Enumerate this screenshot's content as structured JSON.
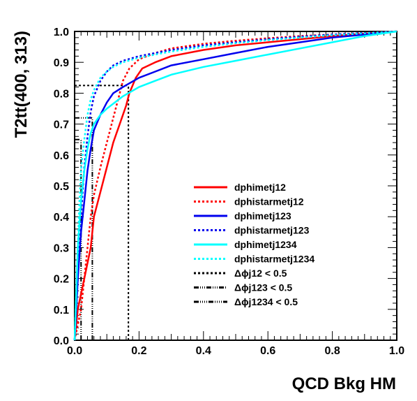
{
  "chart_data": {
    "type": "line",
    "title": "",
    "xlabel": "QCD Bkg HM",
    "ylabel": "T2tt(400, 313)",
    "xlim": [
      0,
      1
    ],
    "ylim": [
      0,
      1
    ],
    "grid": false,
    "legend_position": "center-right",
    "x_ticks": [
      "0.0",
      "0.2",
      "0.4",
      "0.6",
      "0.8",
      "1.0"
    ],
    "y_ticks": [
      "0.0",
      "0.1",
      "0.2",
      "0.3",
      "0.4",
      "0.5",
      "0.6",
      "0.7",
      "0.8",
      "0.9",
      "1.0"
    ],
    "series": [
      {
        "name": "dphimetj12",
        "color": "#ff0000",
        "style": "solid",
        "points": [
          [
            0,
            0
          ],
          [
            0.005,
            0.05
          ],
          [
            0.01,
            0.1
          ],
          [
            0.02,
            0.15
          ],
          [
            0.03,
            0.2
          ],
          [
            0.05,
            0.3
          ],
          [
            0.06,
            0.4
          ],
          [
            0.08,
            0.48
          ],
          [
            0.1,
            0.56
          ],
          [
            0.12,
            0.64
          ],
          [
            0.14,
            0.7
          ],
          [
            0.16,
            0.76
          ],
          [
            0.17,
            0.8
          ],
          [
            0.19,
            0.85
          ],
          [
            0.21,
            0.88
          ],
          [
            0.25,
            0.9
          ],
          [
            0.3,
            0.92
          ],
          [
            0.4,
            0.94
          ],
          [
            0.5,
            0.955
          ],
          [
            0.6,
            0.965
          ],
          [
            0.7,
            0.975
          ],
          [
            0.8,
            0.985
          ],
          [
            0.9,
            0.993
          ],
          [
            1,
            1
          ]
        ]
      },
      {
        "name": "dphistarmetj12",
        "color": "#ff0000",
        "style": "dotted",
        "points": [
          [
            0,
            0
          ],
          [
            0.01,
            0.05
          ],
          [
            0.02,
            0.1
          ],
          [
            0.03,
            0.2
          ],
          [
            0.04,
            0.3
          ],
          [
            0.05,
            0.4
          ],
          [
            0.06,
            0.47
          ],
          [
            0.08,
            0.56
          ],
          [
            0.1,
            0.64
          ],
          [
            0.12,
            0.72
          ],
          [
            0.14,
            0.8
          ],
          [
            0.15,
            0.84
          ],
          [
            0.17,
            0.88
          ],
          [
            0.2,
            0.91
          ],
          [
            0.25,
            0.93
          ],
          [
            0.3,
            0.945
          ],
          [
            0.4,
            0.96
          ],
          [
            0.5,
            0.97
          ],
          [
            0.6,
            0.978
          ],
          [
            0.7,
            0.985
          ],
          [
            0.8,
            0.99
          ],
          [
            0.9,
            0.995
          ],
          [
            1,
            1
          ]
        ]
      },
      {
        "name": "dphimetj123",
        "color": "#0000ee",
        "style": "solid",
        "points": [
          [
            0,
            0
          ],
          [
            0.005,
            0.1
          ],
          [
            0.01,
            0.2
          ],
          [
            0.02,
            0.35
          ],
          [
            0.03,
            0.45
          ],
          [
            0.04,
            0.55
          ],
          [
            0.05,
            0.62
          ],
          [
            0.06,
            0.68
          ],
          [
            0.08,
            0.73
          ],
          [
            0.1,
            0.77
          ],
          [
            0.12,
            0.8
          ],
          [
            0.15,
            0.82
          ],
          [
            0.2,
            0.85
          ],
          [
            0.25,
            0.87
          ],
          [
            0.3,
            0.89
          ],
          [
            0.4,
            0.91
          ],
          [
            0.5,
            0.93
          ],
          [
            0.6,
            0.95
          ],
          [
            0.7,
            0.965
          ],
          [
            0.8,
            0.98
          ],
          [
            0.9,
            0.99
          ],
          [
            1,
            1
          ]
        ]
      },
      {
        "name": "dphistarmetj123",
        "color": "#0000ee",
        "style": "dotted",
        "points": [
          [
            0,
            0
          ],
          [
            0.005,
            0.1
          ],
          [
            0.01,
            0.2
          ],
          [
            0.02,
            0.4
          ],
          [
            0.03,
            0.56
          ],
          [
            0.04,
            0.66
          ],
          [
            0.05,
            0.74
          ],
          [
            0.06,
            0.79
          ],
          [
            0.08,
            0.84
          ],
          [
            0.1,
            0.87
          ],
          [
            0.12,
            0.89
          ],
          [
            0.15,
            0.905
          ],
          [
            0.2,
            0.92
          ],
          [
            0.25,
            0.93
          ],
          [
            0.3,
            0.94
          ],
          [
            0.4,
            0.955
          ],
          [
            0.5,
            0.965
          ],
          [
            0.6,
            0.975
          ],
          [
            0.7,
            0.983
          ],
          [
            0.8,
            0.99
          ],
          [
            0.9,
            0.995
          ],
          [
            1,
            1
          ]
        ]
      },
      {
        "name": "dphimetj1234",
        "color": "#00ffff",
        "style": "solid",
        "points": [
          [
            0,
            0
          ],
          [
            0.005,
            0.15
          ],
          [
            0.01,
            0.3
          ],
          [
            0.02,
            0.45
          ],
          [
            0.03,
            0.55
          ],
          [
            0.04,
            0.62
          ],
          [
            0.05,
            0.67
          ],
          [
            0.06,
            0.7
          ],
          [
            0.08,
            0.73
          ],
          [
            0.1,
            0.75
          ],
          [
            0.15,
            0.79
          ],
          [
            0.2,
            0.82
          ],
          [
            0.25,
            0.84
          ],
          [
            0.3,
            0.86
          ],
          [
            0.4,
            0.885
          ],
          [
            0.5,
            0.905
          ],
          [
            0.6,
            0.925
          ],
          [
            0.7,
            0.945
          ],
          [
            0.8,
            0.965
          ],
          [
            0.9,
            0.985
          ],
          [
            1,
            1
          ]
        ]
      },
      {
        "name": "dphistarmetj1234",
        "color": "#00ffff",
        "style": "dotted",
        "points": [
          [
            0,
            0
          ],
          [
            0.005,
            0.15
          ],
          [
            0.01,
            0.3
          ],
          [
            0.015,
            0.45
          ],
          [
            0.02,
            0.55
          ],
          [
            0.03,
            0.65
          ],
          [
            0.04,
            0.73
          ],
          [
            0.05,
            0.78
          ],
          [
            0.06,
            0.81
          ],
          [
            0.08,
            0.85
          ],
          [
            0.1,
            0.87
          ],
          [
            0.12,
            0.885
          ],
          [
            0.15,
            0.9
          ],
          [
            0.2,
            0.915
          ],
          [
            0.3,
            0.935
          ],
          [
            0.4,
            0.95
          ],
          [
            0.5,
            0.962
          ],
          [
            0.6,
            0.972
          ],
          [
            0.7,
            0.98
          ],
          [
            0.8,
            0.988
          ],
          [
            0.9,
            0.994
          ],
          [
            1,
            1
          ]
        ]
      }
    ],
    "cut_lines": [
      {
        "name": "Δϕj12 < 0.5",
        "x": 0.167,
        "y": 0.825,
        "style": "dotted"
      },
      {
        "name": "Δϕj123 < 0.5",
        "x": 0.055,
        "y": 0.72,
        "style": "dashdot3"
      },
      {
        "name": "Δϕj1234 < 0.5",
        "x": 0.02,
        "y": 0.65,
        "style": "dashdot4"
      }
    ]
  }
}
